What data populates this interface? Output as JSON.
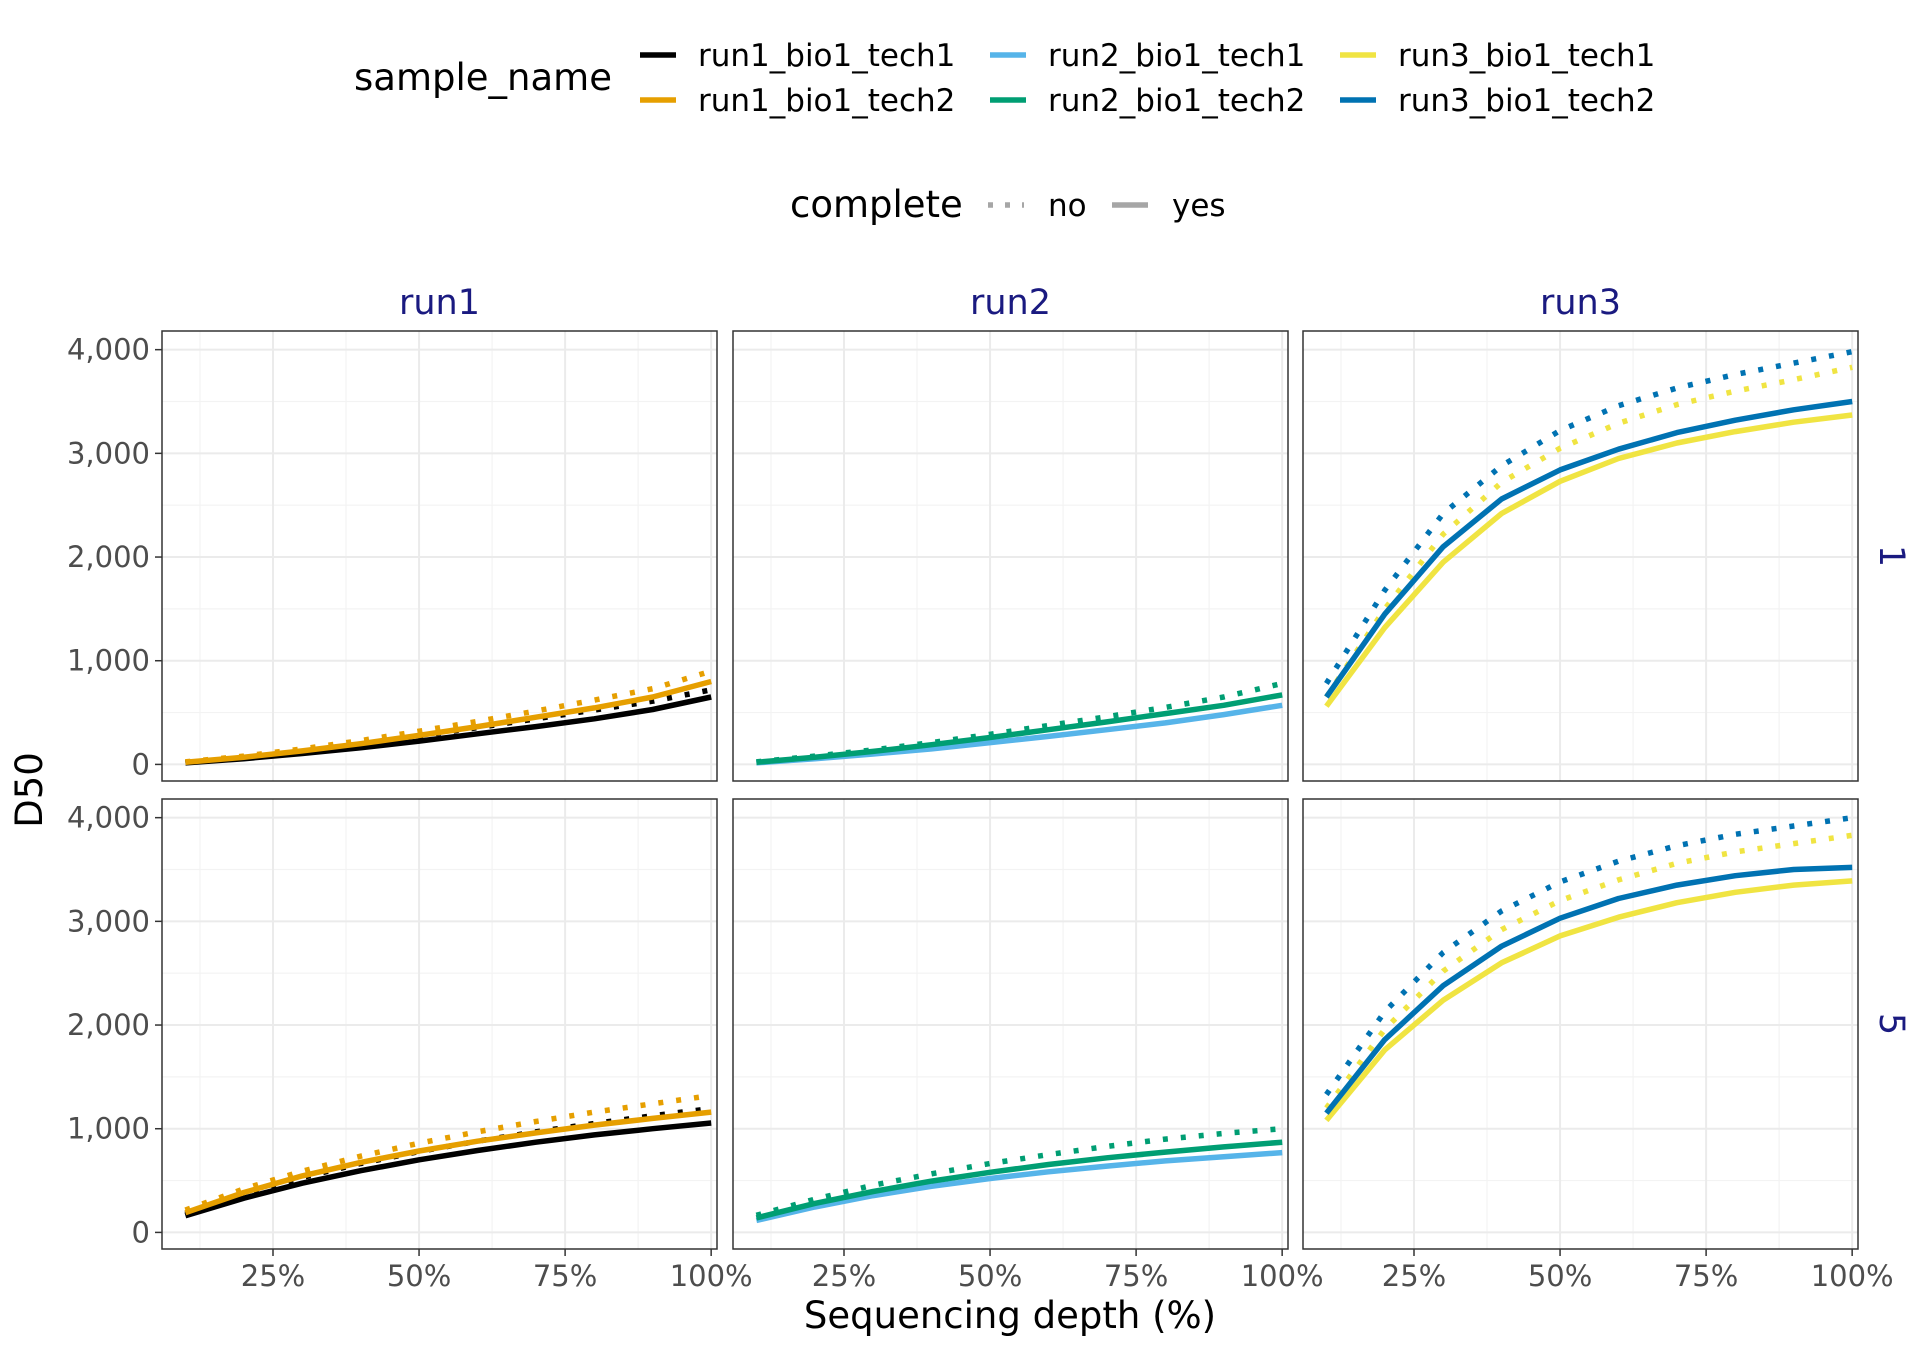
{
  "chart_data": {
    "type": "line",
    "title": "",
    "xlabel": "Sequencing depth (%)",
    "ylabel": "D50",
    "x_ticks": [
      25,
      50,
      75,
      100
    ],
    "x_tick_labels": [
      "25%",
      "50%",
      "75%",
      "100%"
    ],
    "y_ticks": [
      0,
      1000,
      2000,
      3000,
      4000
    ],
    "y_tick_labels": [
      "0",
      "1,000",
      "2,000",
      "3,000",
      "4,000"
    ],
    "xlim": [
      6,
      101
    ],
    "ylim": [
      -160,
      4180
    ],
    "grid": true,
    "x": [
      10,
      20,
      30,
      40,
      50,
      60,
      70,
      80,
      90,
      100
    ],
    "column_facets": [
      "run1",
      "run2",
      "run3"
    ],
    "row_facets": [
      "1",
      "5"
    ],
    "legends": [
      {
        "title": "sample_name",
        "placement": "top",
        "entries": [
          {
            "label": "run1_bio1_tech1",
            "color": "#000000"
          },
          {
            "label": "run1_bio1_tech2",
            "color": "#E69F00"
          },
          {
            "label": "run2_bio1_tech1",
            "color": "#56B4E9"
          },
          {
            "label": "run2_bio1_tech2",
            "color": "#009E73"
          },
          {
            "label": "run3_bio1_tech1",
            "color": "#F0E442"
          },
          {
            "label": "run3_bio1_tech2",
            "color": "#0072B2"
          }
        ]
      },
      {
        "title": "complete",
        "placement": "top",
        "entries": [
          {
            "label": "no",
            "linetype": "dotted",
            "color": "#a6a6a6"
          },
          {
            "label": "yes",
            "linetype": "solid",
            "color": "#a6a6a6"
          }
        ]
      }
    ],
    "panels": [
      {
        "column": "run1",
        "row": "1",
        "series": [
          {
            "sample": "run1_bio1_tech1",
            "complete": "no",
            "values": [
              20,
              65,
              130,
              200,
              275,
              355,
              440,
              525,
              610,
              720
            ]
          },
          {
            "sample": "run1_bio1_tech1",
            "complete": "yes",
            "values": [
              15,
              55,
              105,
              160,
              225,
              295,
              365,
              440,
              530,
              650
            ]
          },
          {
            "sample": "run1_bio1_tech2",
            "complete": "no",
            "values": [
              25,
              80,
              150,
              230,
              320,
              415,
              515,
              620,
              730,
              900
            ]
          },
          {
            "sample": "run1_bio1_tech2",
            "complete": "yes",
            "values": [
              20,
              70,
              130,
              200,
              280,
              365,
              455,
              545,
              650,
              800
            ]
          }
        ]
      },
      {
        "column": "run2",
        "row": "1",
        "series": [
          {
            "sample": "run2_bio1_tech1",
            "complete": "yes",
            "values": [
              15,
              55,
              100,
              150,
              210,
              270,
              335,
              400,
              480,
              570
            ]
          },
          {
            "sample": "run2_bio1_tech2",
            "complete": "no",
            "values": [
              25,
              80,
              140,
              210,
              290,
              375,
              460,
              550,
              650,
              780
            ]
          },
          {
            "sample": "run2_bio1_tech2",
            "complete": "yes",
            "values": [
              20,
              70,
              125,
              190,
              260,
              335,
              410,
              490,
              570,
              670
            ]
          }
        ]
      },
      {
        "column": "run3",
        "row": "1",
        "series": [
          {
            "sample": "run3_bio1_tech1",
            "complete": "no",
            "values": [
              650,
              1500,
              2220,
              2720,
              3050,
              3290,
              3470,
              3600,
              3710,
              3830
            ]
          },
          {
            "sample": "run3_bio1_tech1",
            "complete": "yes",
            "values": [
              560,
              1320,
              1950,
              2420,
              2730,
              2950,
              3100,
              3210,
              3300,
              3370
            ]
          },
          {
            "sample": "run3_bio1_tech2",
            "complete": "no",
            "values": [
              780,
              1680,
              2420,
              2880,
              3220,
              3460,
              3630,
              3760,
              3870,
              3980
            ]
          },
          {
            "sample": "run3_bio1_tech2",
            "complete": "yes",
            "values": [
              650,
              1450,
              2100,
              2560,
              2840,
              3040,
              3200,
              3320,
              3420,
              3500
            ]
          }
        ]
      },
      {
        "column": "run1",
        "row": "5",
        "series": [
          {
            "sample": "run1_bio1_tech1",
            "complete": "no",
            "values": [
              175,
              370,
              530,
              665,
              780,
              880,
              970,
              1050,
              1125,
              1195
            ]
          },
          {
            "sample": "run1_bio1_tech1",
            "complete": "yes",
            "values": [
              160,
              330,
              475,
              595,
              700,
              790,
              870,
              940,
              1000,
              1055
            ]
          },
          {
            "sample": "run1_bio1_tech2",
            "complete": "no",
            "values": [
              215,
              420,
              590,
              735,
              860,
              970,
              1070,
              1160,
              1240,
              1320
            ]
          },
          {
            "sample": "run1_bio1_tech2",
            "complete": "yes",
            "values": [
              190,
              385,
              545,
              675,
              785,
              880,
              960,
              1035,
              1100,
              1160
            ]
          }
        ]
      },
      {
        "column": "run2",
        "row": "5",
        "series": [
          {
            "sample": "run2_bio1_tech1",
            "complete": "yes",
            "values": [
              115,
              245,
              355,
              445,
              520,
              585,
              640,
              690,
              730,
              770
            ]
          },
          {
            "sample": "run2_bio1_tech2",
            "complete": "no",
            "values": [
              165,
              320,
              455,
              565,
              665,
              750,
              830,
              900,
              955,
              1000
            ]
          },
          {
            "sample": "run2_bio1_tech2",
            "complete": "yes",
            "values": [
              140,
              280,
              395,
              495,
              580,
              655,
              720,
              775,
              825,
              870
            ]
          }
        ]
      },
      {
        "column": "run3",
        "row": "5",
        "series": [
          {
            "sample": "run3_bio1_tech1",
            "complete": "no",
            "values": [
              1200,
              1960,
              2520,
              2920,
              3200,
              3400,
              3560,
              3670,
              3750,
              3830
            ]
          },
          {
            "sample": "run3_bio1_tech1",
            "complete": "yes",
            "values": [
              1080,
              1760,
              2240,
              2600,
              2860,
              3040,
              3180,
              3280,
              3350,
              3390
            ]
          },
          {
            "sample": "run3_bio1_tech2",
            "complete": "no",
            "values": [
              1330,
              2130,
              2700,
              3100,
              3380,
              3580,
              3730,
              3840,
              3920,
              4000
            ]
          },
          {
            "sample": "run3_bio1_tech2",
            "complete": "yes",
            "values": [
              1150,
              1860,
              2380,
              2760,
              3030,
              3220,
              3350,
              3440,
              3500,
              3520
            ]
          }
        ]
      }
    ]
  }
}
